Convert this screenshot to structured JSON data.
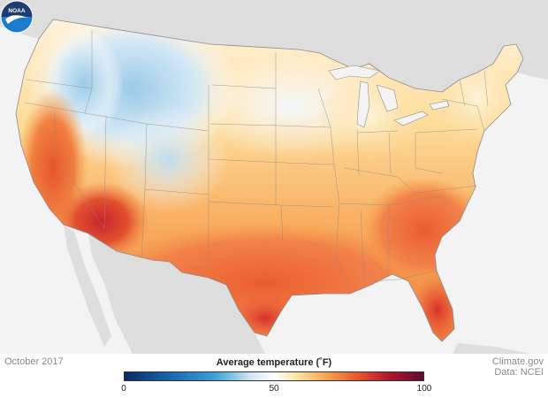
{
  "map": {
    "subject": "Average temperature, contiguous United States",
    "month": "October 2017",
    "background": "#f3f3f3",
    "land_color": "#dedede",
    "water_color": "#f3f3f3"
  },
  "legend": {
    "title": "Average temperature (˚F)",
    "min": 0,
    "max": 100,
    "ticks": [
      "0",
      "50",
      "100"
    ],
    "tick_values": [
      0,
      50,
      100
    ],
    "color_stops": [
      {
        "value": 0,
        "color": "#0a2a64"
      },
      {
        "value": 15,
        "color": "#1666b0"
      },
      {
        "value": 30,
        "color": "#3aa0d9"
      },
      {
        "value": 42,
        "color": "#cfe6f3"
      },
      {
        "value": 50,
        "color": "#ffffff"
      },
      {
        "value": 58,
        "color": "#fde2a0"
      },
      {
        "value": 68,
        "color": "#f7a14a"
      },
      {
        "value": 78,
        "color": "#e8552c"
      },
      {
        "value": 88,
        "color": "#b7172a"
      },
      {
        "value": 100,
        "color": "#5c0a33"
      }
    ]
  },
  "footer": {
    "date": "October 2017",
    "credit_line1": "Climate.gov",
    "credit_line2": "Data: NCEI"
  },
  "logo": {
    "text": "NOAA",
    "colors": {
      "top": "#1e3c72",
      "bottom": "#1e7ccf",
      "bird": "#ffffff"
    }
  }
}
